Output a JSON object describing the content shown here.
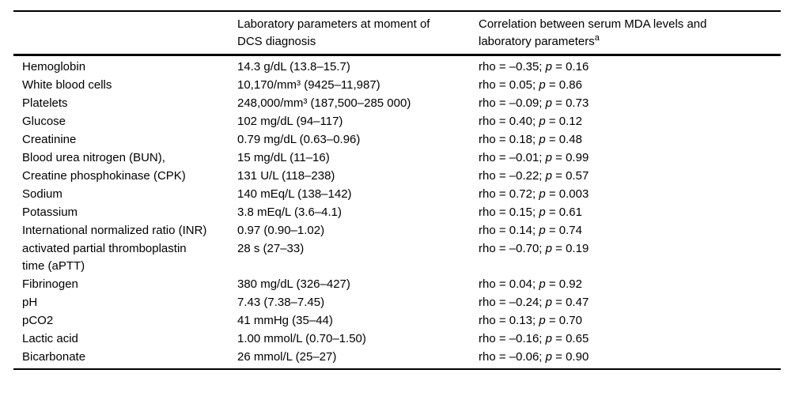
{
  "table": {
    "headers": {
      "col1": "",
      "col2": "Laboratory parameters at moment of DCS diagnosis",
      "col3": "Correlation between serum MDA levels and laboratory parameters",
      "col3_superscript": "a"
    },
    "correlation_format": {
      "rho_label": "rho",
      "p_label": "p",
      "equals": " = ",
      "separator": "; "
    },
    "rows": [
      {
        "parameter": "Hemoglobin",
        "value": "14.3 g/dL (13.8–15.7)",
        "rho": "–0.35",
        "p": "0.16"
      },
      {
        "parameter": "White blood cells",
        "value": "10,170/mm³ (9425–11,987)",
        "rho": "0.05",
        "p": "0.86"
      },
      {
        "parameter": "Platelets",
        "value": "248,000/mm³ (187,500–285 000)",
        "rho": "–0.09",
        "p": "0.73"
      },
      {
        "parameter": "Glucose",
        "value": "102 mg/dL (94–117)",
        "rho": "0.40",
        "p": "0.12"
      },
      {
        "parameter": "Creatinine",
        "value": "0.79 mg/dL (0.63–0.96)",
        "rho": "0.18",
        "p": "0.48"
      },
      {
        "parameter": "Blood urea nitrogen (BUN),",
        "value": "15 mg/dL (11–16)",
        "rho": "–0.01",
        "p": "0.99"
      },
      {
        "parameter": "Creatine phosphokinase (CPK)",
        "value": "131 U/L (118–238)",
        "rho": "–0.22",
        "p": "0.57"
      },
      {
        "parameter": "Sodium",
        "value": "140 mEq/L (138–142)",
        "rho": "0.72",
        "p": "0.003"
      },
      {
        "parameter": "Potassium",
        "value": "3.8 mEq/L (3.6–4.1)",
        "rho": "0.15",
        "p": "0.61"
      },
      {
        "parameter": "International normalized ratio (INR)",
        "value": "0.97 (0.90–1.02)",
        "rho": "0.14",
        "p": "0.74"
      },
      {
        "parameter": "activated partial thromboplastin time (aPTT)",
        "value": "28 s (27–33)",
        "rho": "–0.70",
        "p": "0.19"
      },
      {
        "parameter": "Fibrinogen",
        "value": "380 mg/dL (326–427)",
        "rho": "0.04",
        "p": "0.92"
      },
      {
        "parameter": "pH",
        "value": "7.43 (7.38–7.45)",
        "rho": "–0.24",
        "p": "0.47"
      },
      {
        "parameter": "pCO2",
        "value": "41 mmHg (35–44)",
        "rho": "0.13",
        "p": "0.70"
      },
      {
        "parameter": "Lactic acid",
        "value": "1.00 mmol/L (0.70–1.50)",
        "rho": "–0.16",
        "p": "0.65"
      },
      {
        "parameter": "Bicarbonate",
        "value": "26 mmol/L (25–27)",
        "rho": "–0.06",
        "p": "0.90"
      }
    ]
  }
}
